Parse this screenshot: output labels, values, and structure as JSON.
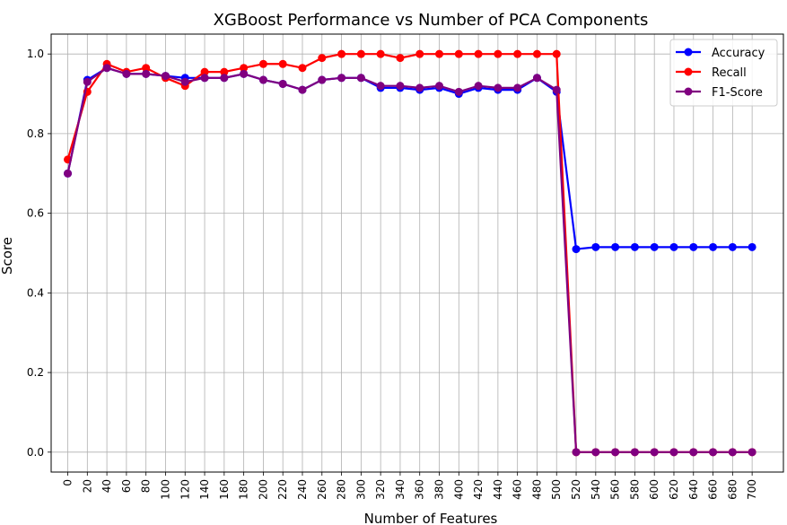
{
  "chart_data": {
    "type": "line",
    "title": "XGBoost Performance vs Number of PCA Components",
    "xlabel": "Number of Features",
    "ylabel": "Score",
    "x": [
      0,
      20,
      40,
      60,
      80,
      100,
      120,
      140,
      160,
      180,
      200,
      220,
      240,
      260,
      280,
      300,
      320,
      340,
      360,
      380,
      400,
      420,
      440,
      460,
      480,
      500,
      520,
      540,
      560,
      580,
      600,
      620,
      640,
      660,
      680,
      700
    ],
    "xticks": [
      "0",
      "20",
      "40",
      "60",
      "80",
      "100",
      "120",
      "140",
      "160",
      "180",
      "200",
      "220",
      "240",
      "260",
      "280",
      "300",
      "320",
      "340",
      "360",
      "380",
      "400",
      "420",
      "440",
      "460",
      "480",
      "500",
      "520",
      "540",
      "560",
      "580",
      "600",
      "620",
      "640",
      "660",
      "680",
      "700"
    ],
    "yticks": [
      "0.0",
      "0.2",
      "0.4",
      "0.6",
      "0.8",
      "1.0"
    ],
    "xlim": [
      -17,
      732
    ],
    "ylim": [
      -0.05,
      1.05
    ],
    "grid": true,
    "legend_position": "top-right",
    "series": [
      {
        "name": "Accuracy",
        "color": "#0000ff",
        "values": [
          0.7,
          0.935,
          0.965,
          0.95,
          0.95,
          0.945,
          0.94,
          0.94,
          0.94,
          0.95,
          0.935,
          0.925,
          0.91,
          0.935,
          0.94,
          0.94,
          0.915,
          0.915,
          0.91,
          0.915,
          0.9,
          0.915,
          0.91,
          0.91,
          0.94,
          0.905,
          0.51,
          0.515,
          0.515,
          0.515,
          0.515,
          0.515,
          0.515,
          0.515,
          0.515,
          0.515
        ]
      },
      {
        "name": "Recall",
        "color": "#ff0000",
        "values": [
          0.735,
          0.905,
          0.975,
          0.955,
          0.965,
          0.94,
          0.92,
          0.955,
          0.955,
          0.965,
          0.975,
          0.975,
          0.965,
          0.99,
          1.0,
          1.0,
          1.0,
          0.99,
          1.0,
          1.0,
          1.0,
          1.0,
          1.0,
          1.0,
          1.0,
          1.0,
          0.0,
          0.0,
          0.0,
          0.0,
          0.0,
          0.0,
          0.0,
          0.0,
          0.0,
          0.0
        ]
      },
      {
        "name": "F1-Score",
        "color": "#800080",
        "values": [
          0.7,
          0.93,
          0.965,
          0.95,
          0.95,
          0.945,
          0.93,
          0.94,
          0.94,
          0.95,
          0.935,
          0.925,
          0.91,
          0.935,
          0.94,
          0.94,
          0.92,
          0.92,
          0.915,
          0.92,
          0.905,
          0.92,
          0.915,
          0.915,
          0.94,
          0.91,
          0.0,
          0.0,
          0.0,
          0.0,
          0.0,
          0.0,
          0.0,
          0.0,
          0.0,
          0.0
        ]
      }
    ]
  }
}
